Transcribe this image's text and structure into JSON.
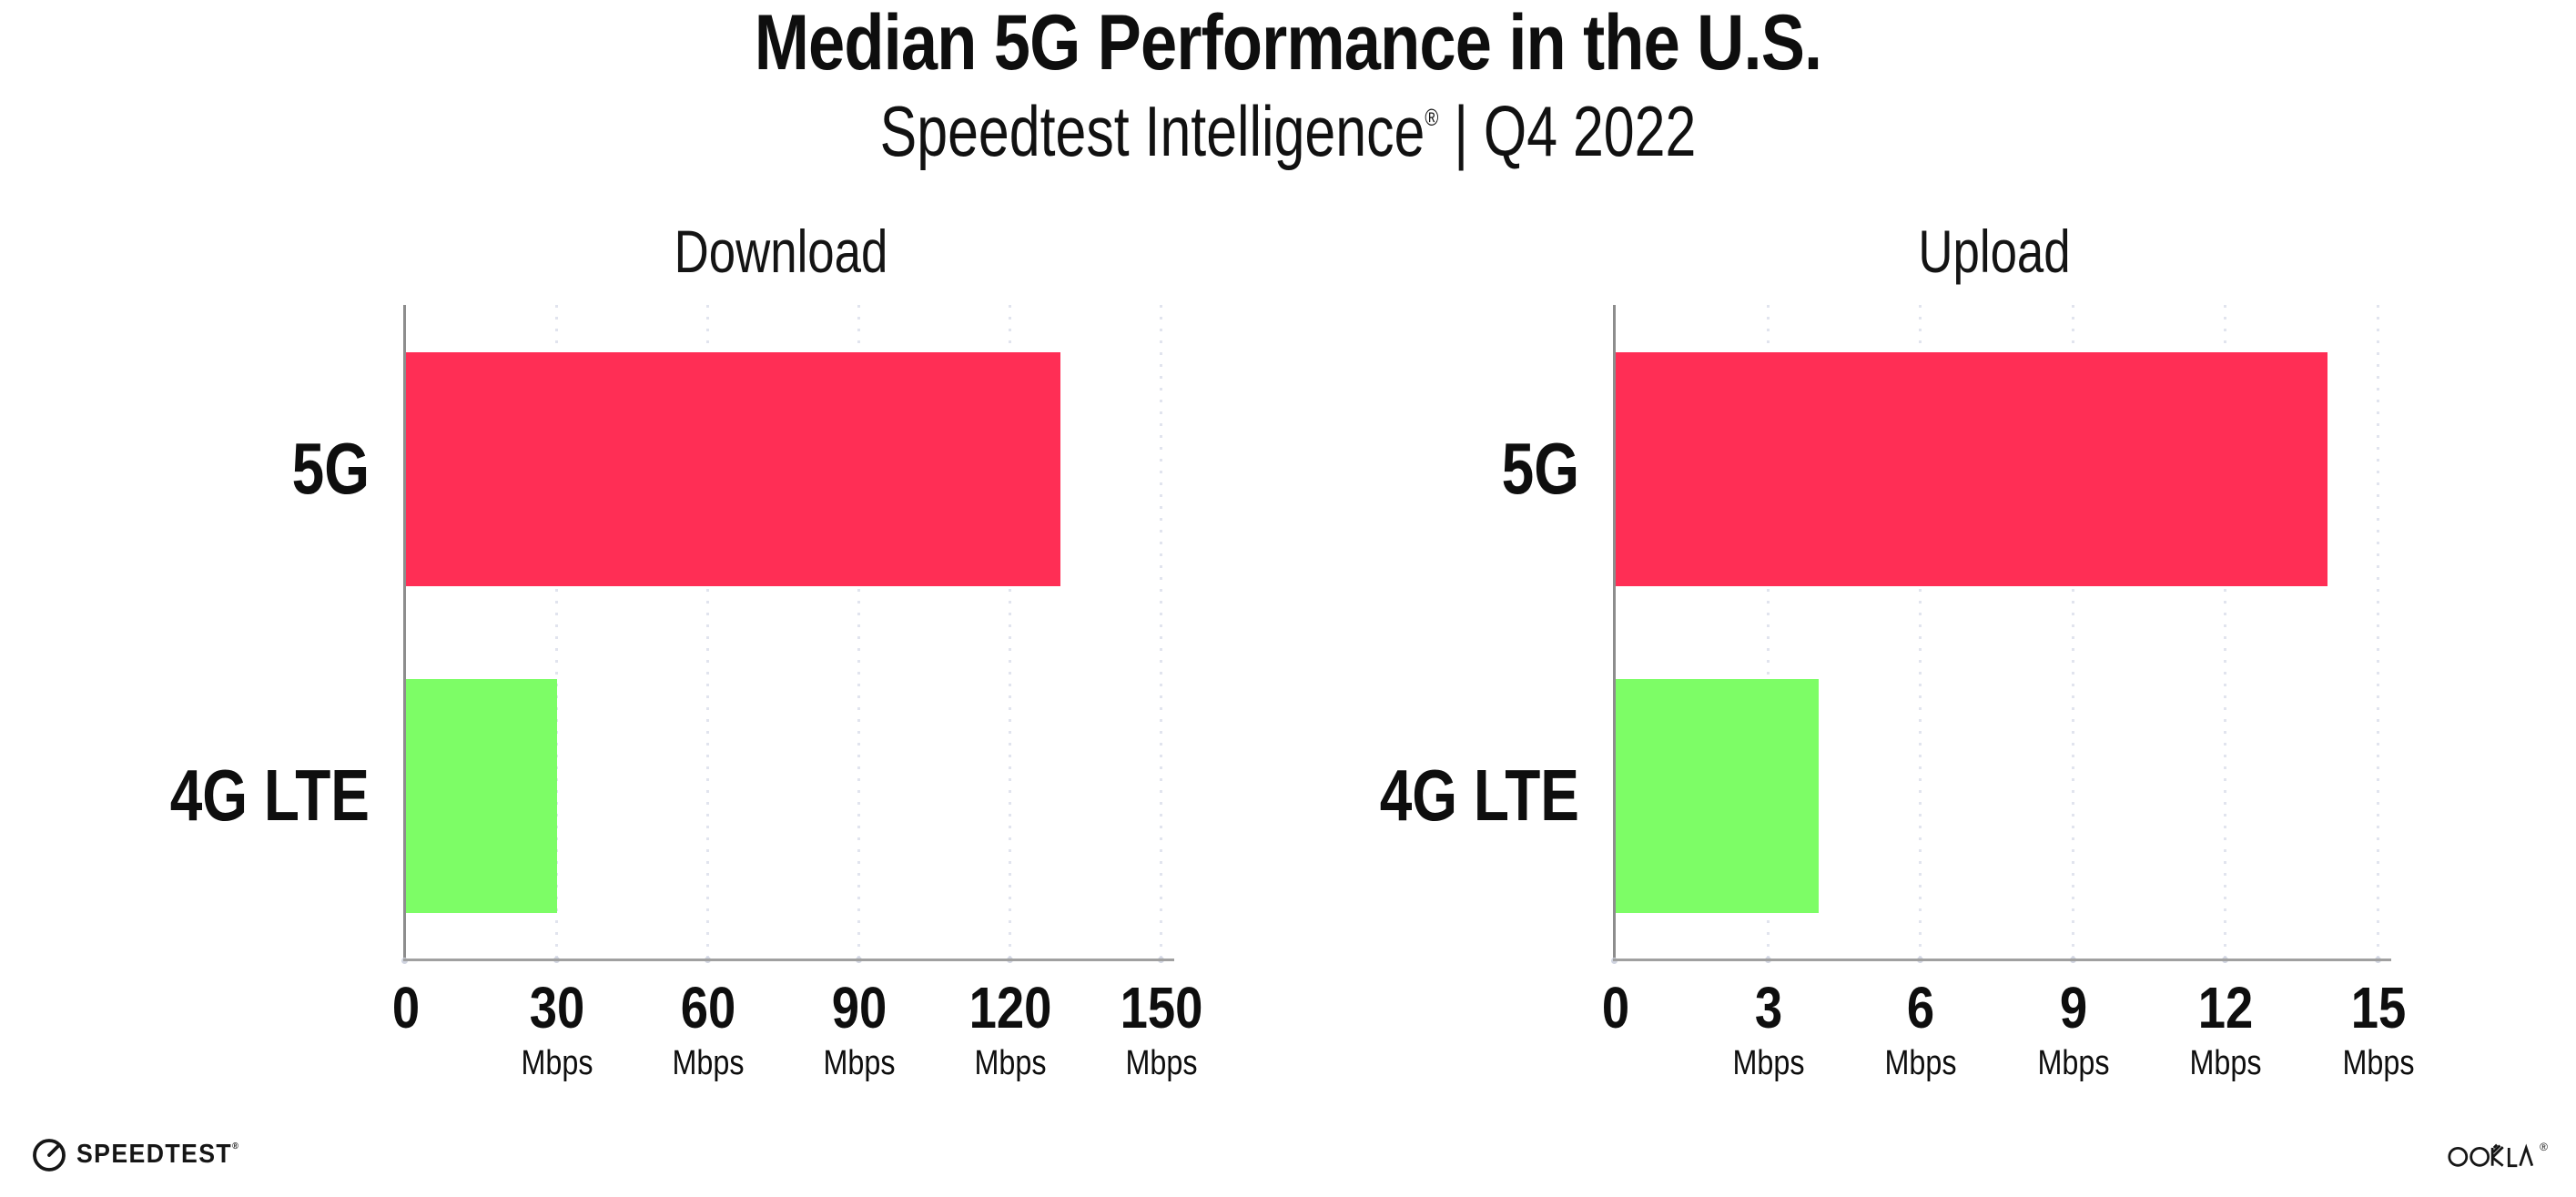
{
  "header": {
    "title": "Median 5G Performance in the U.S.",
    "subtitle_brand": "Speedtest Intelligence",
    "subtitle_reg": "®",
    "subtitle_rest": " | Q4 2022"
  },
  "footer": {
    "speedtest_label": "SPEEDTEST",
    "speedtest_reg": "®",
    "ookla_label": "OOKLA",
    "ookla_reg": "®"
  },
  "colors": {
    "bar_5g": "#FF2E55",
    "bar_4g_lte": "#7DFD66",
    "axis_line": "#9B9B9B",
    "gridline_dots": "#E1E4EE",
    "text": "#0E0E0E"
  },
  "chart_data": [
    {
      "type": "bar",
      "orientation": "horizontal",
      "title": "Download",
      "categories": [
        "5G",
        "4G LTE"
      ],
      "values": [
        130,
        30
      ],
      "unit": "Mbps",
      "xlabel": "",
      "ylabel": "",
      "xlim": [
        0,
        150
      ],
      "xticks": [
        0,
        30,
        60,
        90,
        120,
        150
      ],
      "series_colors": [
        "#FF2E55",
        "#7DFD66"
      ],
      "grid": "vertical-dotted",
      "legend": "none",
      "ticks": [
        {
          "label": "0",
          "unit": ""
        },
        {
          "label": "30",
          "unit": "Mbps"
        },
        {
          "label": "60",
          "unit": "Mbps"
        },
        {
          "label": "90",
          "unit": "Mbps"
        },
        {
          "label": "120",
          "unit": "Mbps"
        },
        {
          "label": "150",
          "unit": "Mbps"
        }
      ]
    },
    {
      "type": "bar",
      "orientation": "horizontal",
      "title": "Upload",
      "categories": [
        "5G",
        "4G LTE"
      ],
      "values": [
        14,
        4
      ],
      "unit": "Mbps",
      "xlabel": "",
      "ylabel": "",
      "xlim": [
        0,
        15
      ],
      "xticks": [
        0,
        3,
        6,
        9,
        12,
        15
      ],
      "series_colors": [
        "#FF2E55",
        "#7DFD66"
      ],
      "grid": "vertical-dotted",
      "legend": "none",
      "ticks": [
        {
          "label": "0",
          "unit": ""
        },
        {
          "label": "3",
          "unit": "Mbps"
        },
        {
          "label": "6",
          "unit": "Mbps"
        },
        {
          "label": "9",
          "unit": "Mbps"
        },
        {
          "label": "12",
          "unit": "Mbps"
        },
        {
          "label": "15",
          "unit": "Mbps"
        }
      ]
    }
  ]
}
